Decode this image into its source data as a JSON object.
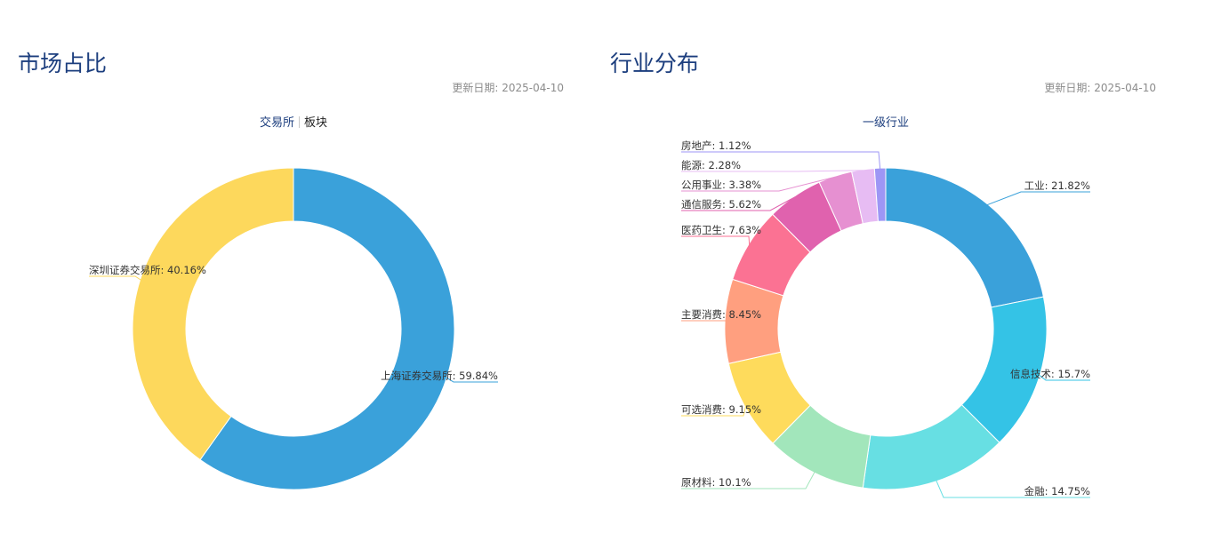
{
  "market": {
    "title": "市场占比",
    "update_label": "更新日期: 2025-04-10",
    "tabs": [
      {
        "label": "交易所",
        "active": true
      },
      {
        "label": "板块",
        "active": false
      }
    ]
  },
  "industry": {
    "title": "行业分布",
    "update_label": "更新日期: 2025-04-10",
    "chart_title": "一级行业"
  },
  "chart_data": [
    {
      "type": "pie",
      "donut": true,
      "categories": [
        "上海证券交易所",
        "深圳证券交易所"
      ],
      "values": [
        59.84,
        40.16
      ],
      "unit": "%",
      "colors": [
        "#3aa1da",
        "#fdd85c"
      ]
    },
    {
      "type": "pie",
      "donut": true,
      "title": "一级行业",
      "categories": [
        "工业",
        "信息技术",
        "金融",
        "原材料",
        "可选消费",
        "主要消费",
        "医药卫生",
        "通信服务",
        "公用事业",
        "能源",
        "房地产"
      ],
      "values": [
        21.82,
        15.7,
        14.75,
        10.1,
        9.15,
        8.45,
        7.63,
        5.62,
        3.38,
        2.28,
        1.12
      ],
      "unit": "%",
      "colors": [
        "#3aa1da",
        "#34c3e6",
        "#67dfe3",
        "#a2e6bb",
        "#fedb5c",
        "#ff9f7f",
        "#fb7293",
        "#e062ae",
        "#e690d1",
        "#e7bcf3",
        "#9d96f5"
      ]
    }
  ]
}
